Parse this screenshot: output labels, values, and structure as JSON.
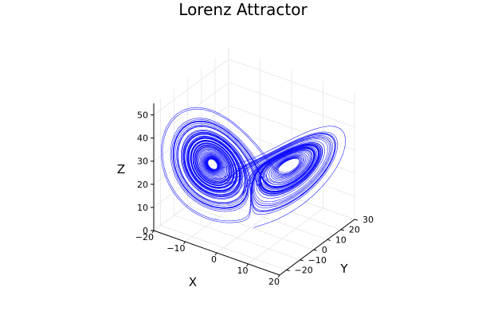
{
  "chart_data": {
    "type": "line",
    "projection": "3d",
    "title": "Lorenz Attractor",
    "xlabel": "X",
    "ylabel": "Y",
    "zlabel": "Z",
    "xlim": [
      -20,
      20
    ],
    "ylim": [
      -25,
      30
    ],
    "zlim": [
      0,
      55
    ],
    "xticks": [
      "−20",
      "−10",
      "0",
      "10",
      "20"
    ],
    "yticks": [
      "−20",
      "−10",
      "0",
      "10",
      "20",
      "30"
    ],
    "zticks": [
      "0",
      "10",
      "20",
      "30",
      "40",
      "50"
    ],
    "grid": true,
    "legend": "none",
    "series": [
      {
        "color": "#0000ff",
        "generator": "lorenz",
        "sigma": 10,
        "rho": 28,
        "beta": 2.6666667,
        "initial": [
          1,
          0,
          0
        ]
      }
    ]
  }
}
